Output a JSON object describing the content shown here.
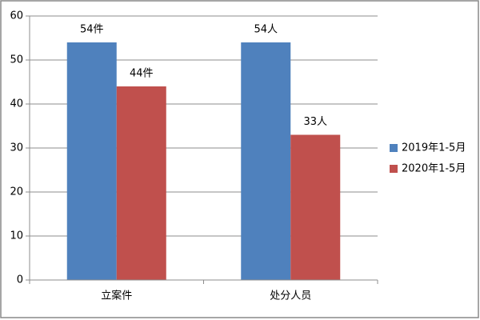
{
  "chart_data": {
    "type": "bar",
    "categories": [
      "立案件",
      "处分人员"
    ],
    "series": [
      {
        "name": "2019年1-5月",
        "color": "#4f81bd",
        "values": [
          54,
          54
        ],
        "value_labels": [
          "54件",
          "54人"
        ]
      },
      {
        "name": "2020年1-5月",
        "color": "#c0504d",
        "values": [
          44,
          33
        ],
        "value_labels": [
          "44件",
          "33人"
        ]
      }
    ],
    "ylim": [
      0,
      60
    ],
    "yticks": [
      0,
      10,
      20,
      30,
      40,
      50,
      60
    ],
    "grid": true,
    "legend": "right"
  }
}
